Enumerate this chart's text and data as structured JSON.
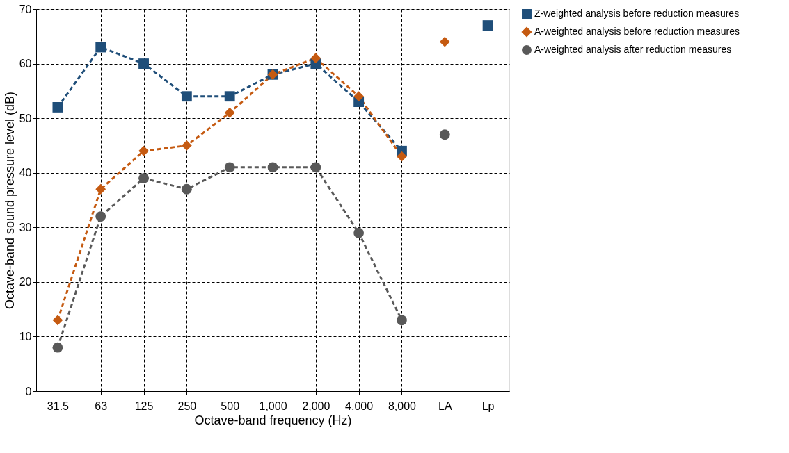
{
  "chart_data": {
    "type": "line",
    "xlabel": "Octave-band frequency (Hz)",
    "ylabel": "Octave-band sound pressure level (dB)",
    "categories": [
      "31.5",
      "63",
      "125",
      "250",
      "500",
      "1,000",
      "2,000",
      "4,000",
      "8,000",
      "LA",
      "Lp"
    ],
    "ylim": [
      0,
      70
    ],
    "yticks": [
      0,
      10,
      20,
      30,
      40,
      50,
      60,
      70
    ],
    "grid": true,
    "legend": "right",
    "line_style": "dashed",
    "series": [
      {
        "name": "Z-weighted analysis before reduction measures",
        "color": "#1f4e79",
        "marker": "square",
        "values": [
          52,
          63,
          60,
          54,
          54,
          58,
          60,
          53,
          44,
          null,
          null
        ]
      },
      {
        "name": "A-weighted analysis before reduction measures",
        "color": "#c55a11",
        "marker": "diamond",
        "values": [
          13,
          37,
          44,
          45,
          51,
          58,
          61,
          54,
          43,
          null,
          null
        ]
      },
      {
        "name": "A-weighted analysis after reduction measures",
        "color": "#595959",
        "marker": "circle",
        "values": [
          8,
          32,
          39,
          37,
          41,
          41,
          41,
          29,
          13,
          null,
          null
        ]
      },
      {
        "type": "scatter",
        "color": "#1f4e79",
        "marker": "square",
        "values": [
          null,
          null,
          null,
          null,
          null,
          null,
          null,
          null,
          null,
          null,
          67
        ]
      },
      {
        "type": "scatter",
        "color": "#c55a11",
        "marker": "diamond",
        "values": [
          null,
          null,
          null,
          null,
          null,
          null,
          null,
          null,
          null,
          64,
          null
        ]
      },
      {
        "type": "scatter",
        "color": "#595959",
        "marker": "circle",
        "values": [
          null,
          null,
          null,
          null,
          null,
          null,
          null,
          null,
          null,
          47,
          null
        ]
      }
    ]
  }
}
